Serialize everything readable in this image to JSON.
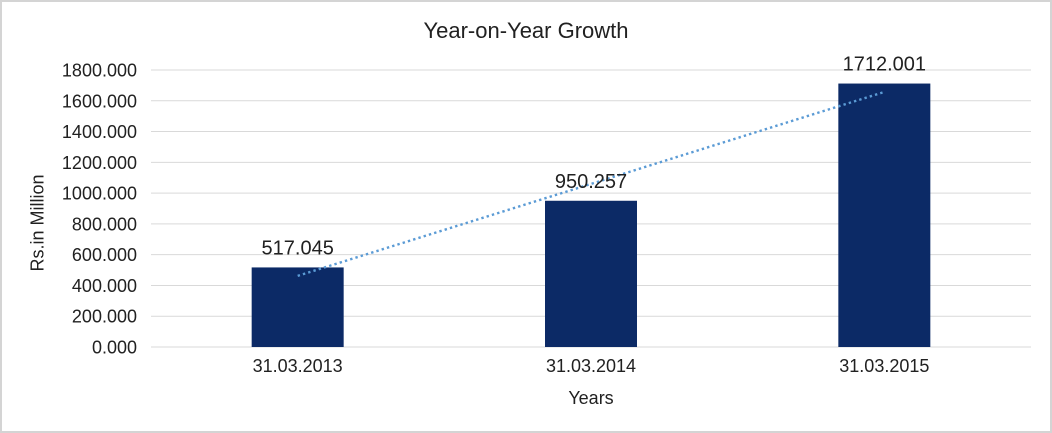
{
  "chart_data": {
    "type": "bar",
    "title": "Year-on-Year Growth",
    "xlabel": "Years",
    "ylabel": "Rs.in Million",
    "categories": [
      "31.03.2013",
      "31.03.2014",
      "31.03.2015"
    ],
    "values": [
      517.045,
      950.257,
      1712.001
    ],
    "data_labels": [
      "517.045",
      "950.257",
      "1712.001"
    ],
    "ylim": [
      0,
      1800
    ],
    "y_tick_step": 200,
    "y_tick_labels": [
      "0.000",
      "200.000",
      "400.000",
      "600.000",
      "800.000",
      "1000.000",
      "1200.000",
      "1400.000",
      "1600.000",
      "1800.000"
    ],
    "grid": true,
    "legend": "none",
    "trendline": {
      "kind": "linear",
      "style": "dotted"
    },
    "colors": {
      "bar": "#0c2a66",
      "trendline": "#5b9bd5",
      "gridline": "#d9d9d9",
      "text": "#212121",
      "background": "#ffffff",
      "frame_border": "#d4d4d4"
    }
  }
}
